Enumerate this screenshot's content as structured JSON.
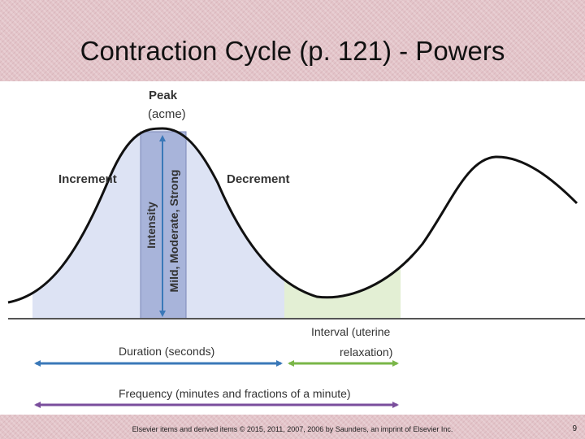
{
  "slide": {
    "title": "Contraction Cycle (p. 121) - Powers",
    "copyright": "Elsevier items and derived items © 2015, 2011, 2007, 2006 by Saunders, an imprint of Elsevier Inc.",
    "page_number": "9"
  },
  "diagram": {
    "peak_label": "Peak",
    "acme_label": "(acme)",
    "increment_label": "Increment",
    "decrement_label": "Decrement",
    "intensity_label": "Intensity",
    "intensity_levels_label": "Mild, Moderate, Strong",
    "interval_label_line1": "Interval (uterine",
    "interval_label_line2": "relaxation)",
    "duration_label": "Duration (seconds)",
    "frequency_label": "Frequency (minutes and fractions of a minute)"
  },
  "colors": {
    "contraction_fill": "#dde3f4",
    "intensity_bar": "#a8b4da",
    "interval_fill": "#e3efd4",
    "duration_arrow": "#3a78b8",
    "interval_arrow": "#7ab648",
    "frequency_arrow": "#7a4e9c",
    "intensity_arrow": "#3a78b8"
  }
}
